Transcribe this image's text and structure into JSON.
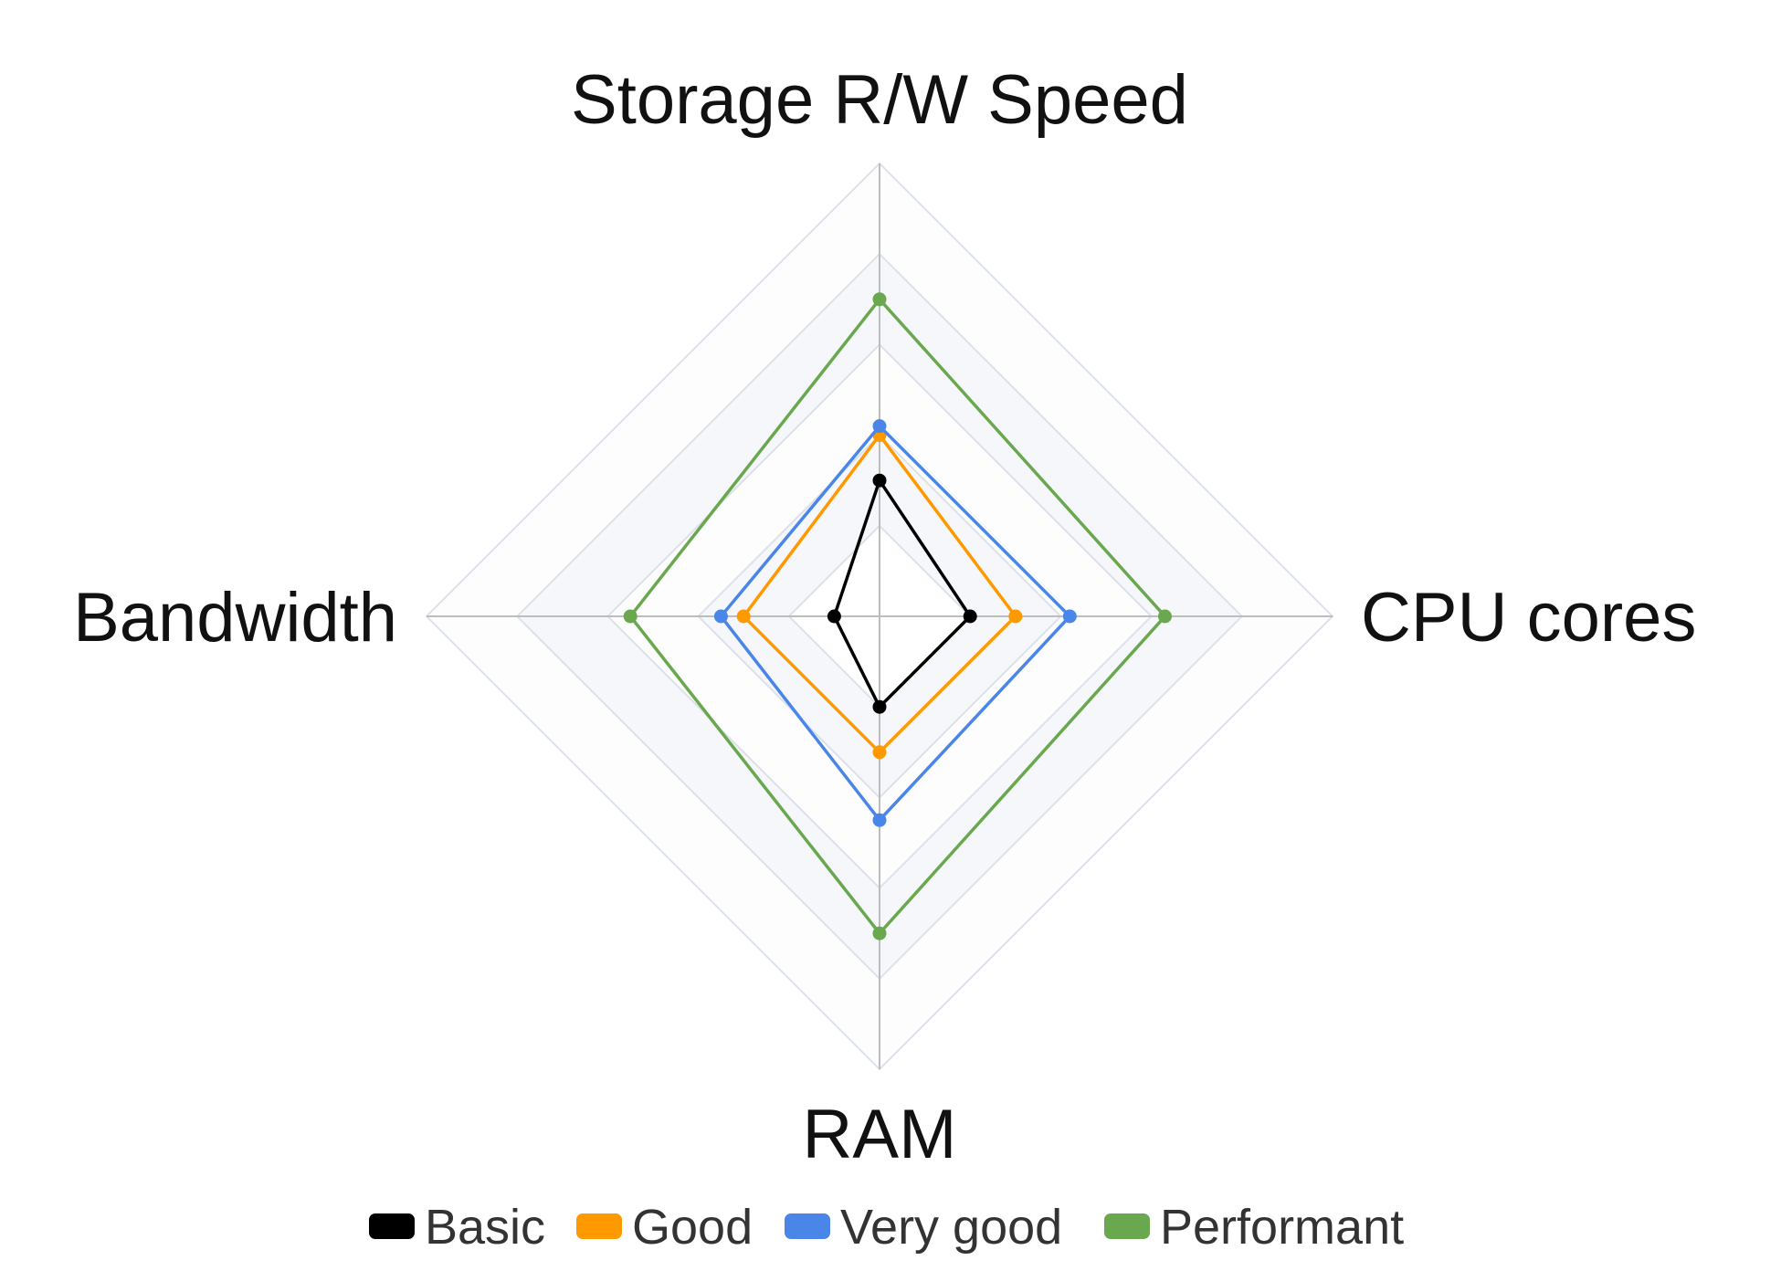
{
  "chart_data": {
    "type": "radar",
    "axes": [
      "Storage R/W Speed",
      "CPU cores",
      "RAM",
      "Bandwidth"
    ],
    "rlim": [
      0,
      5
    ],
    "grid": true,
    "legend_position": "bottom",
    "series": [
      {
        "name": "Basic",
        "color": "#000000",
        "values": [
          1.5,
          1.0,
          1.0,
          0.5
        ]
      },
      {
        "name": "Good",
        "color": "#ff9900",
        "values": [
          2.0,
          1.5,
          1.5,
          1.5
        ]
      },
      {
        "name": "Very good",
        "color": "#4a86e8",
        "values": [
          2.1,
          2.1,
          2.25,
          1.75
        ]
      },
      {
        "name": "Performant",
        "color": "#6aa84f",
        "values": [
          3.5,
          3.15,
          3.5,
          2.75
        ]
      }
    ]
  }
}
